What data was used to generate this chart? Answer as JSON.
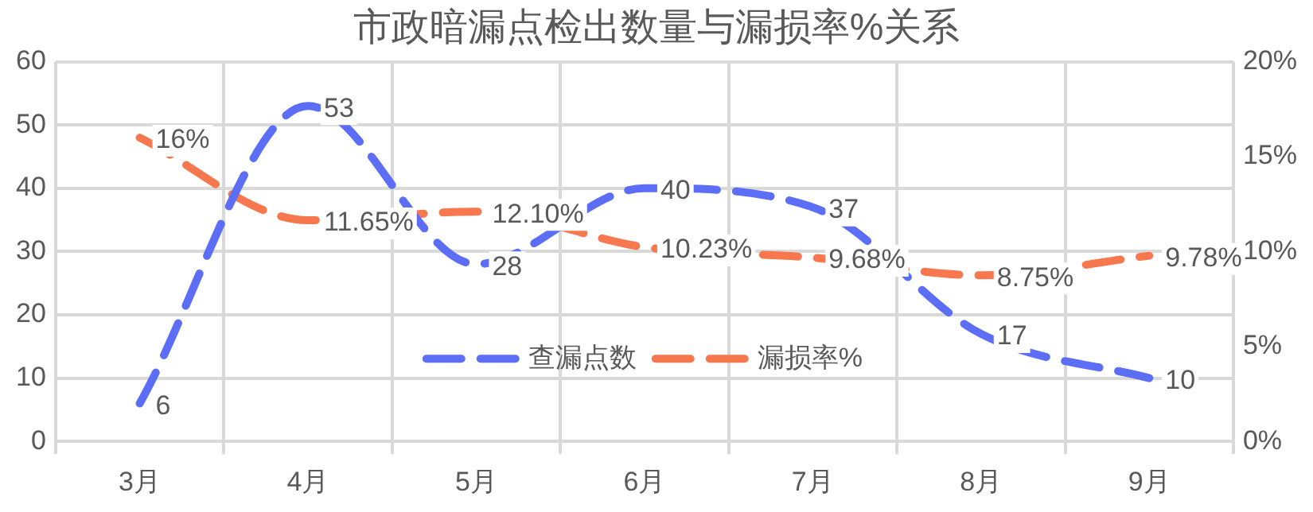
{
  "chart_data": {
    "type": "line",
    "title": "市政暗漏点检出数量与漏损率%关系",
    "categories": [
      "3月",
      "4月",
      "5月",
      "6月",
      "7月",
      "8月",
      "9月"
    ],
    "series": [
      {
        "name": "查漏点数",
        "color": "#5b6ef5",
        "values": [
          6,
          53,
          28,
          40,
          37,
          17,
          10
        ],
        "value_labels": [
          "6",
          "53",
          "28",
          "40",
          "37",
          "17",
          "10"
        ],
        "line_style": "dashed"
      },
      {
        "name": "漏损率%",
        "color": "#f7784f",
        "axis": "y2",
        "values": [
          16,
          11.65,
          12.1,
          10.23,
          9.68,
          8.75,
          9.78
        ],
        "value_labels": [
          "16%",
          "11.65%",
          "12.10%",
          "10.23%",
          "9.68%",
          "8.75%",
          "9.78%"
        ],
        "line_style": "dashed"
      }
    ],
    "ylim": [
      0,
      60
    ],
    "yticks": [
      0,
      10,
      20,
      30,
      40,
      50,
      60
    ],
    "y2lim": [
      0,
      20
    ],
    "y2ticks": [
      {
        "value": 0,
        "label": "0%"
      },
      {
        "value": 5,
        "label": "5%"
      },
      {
        "value": 10,
        "label": "10%"
      },
      {
        "value": 15,
        "label": "15%"
      },
      {
        "value": 20,
        "label": "20%"
      }
    ],
    "grid": true,
    "legend": "bottom",
    "marker": "none"
  }
}
